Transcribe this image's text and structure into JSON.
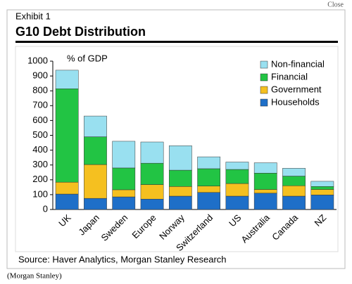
{
  "close": "Close",
  "credit": "(Morgan Stanley)",
  "chart_data": {
    "type": "stacked_bar",
    "exhibit": "Exhibit 1",
    "title": "G10 Debt Distribution",
    "y_label": "% of GDP",
    "source": "Source: Haver Analytics, Morgan Stanley Research",
    "categories": [
      "UK",
      "Japan",
      "Sweden",
      "Europe",
      "Norway",
      "Switzerland",
      "US",
      "Australia",
      "Canada",
      "NZ"
    ],
    "series": [
      {
        "name": "Non-financial",
        "color": "#99e0f0",
        "values": [
          125,
          140,
          180,
          143,
          165,
          80,
          50,
          70,
          53,
          35
        ]
      },
      {
        "name": "Financial",
        "color": "#22c444",
        "values": [
          630,
          187,
          147,
          144,
          110,
          117,
          95,
          110,
          65,
          20
        ]
      },
      {
        "name": "Government",
        "color": "#f5c020",
        "values": [
          80,
          228,
          48,
          98,
          65,
          43,
          85,
          25,
          70,
          37
        ]
      },
      {
        "name": "Households",
        "color": "#1e6fc8",
        "values": [
          104,
          75,
          85,
          70,
          90,
          115,
          90,
          110,
          90,
          98
        ]
      }
    ],
    "ylim": [
      0,
      1000
    ],
    "yticks": [
      0,
      100,
      200,
      300,
      400,
      500,
      600,
      700,
      800,
      900,
      1000
    ]
  }
}
